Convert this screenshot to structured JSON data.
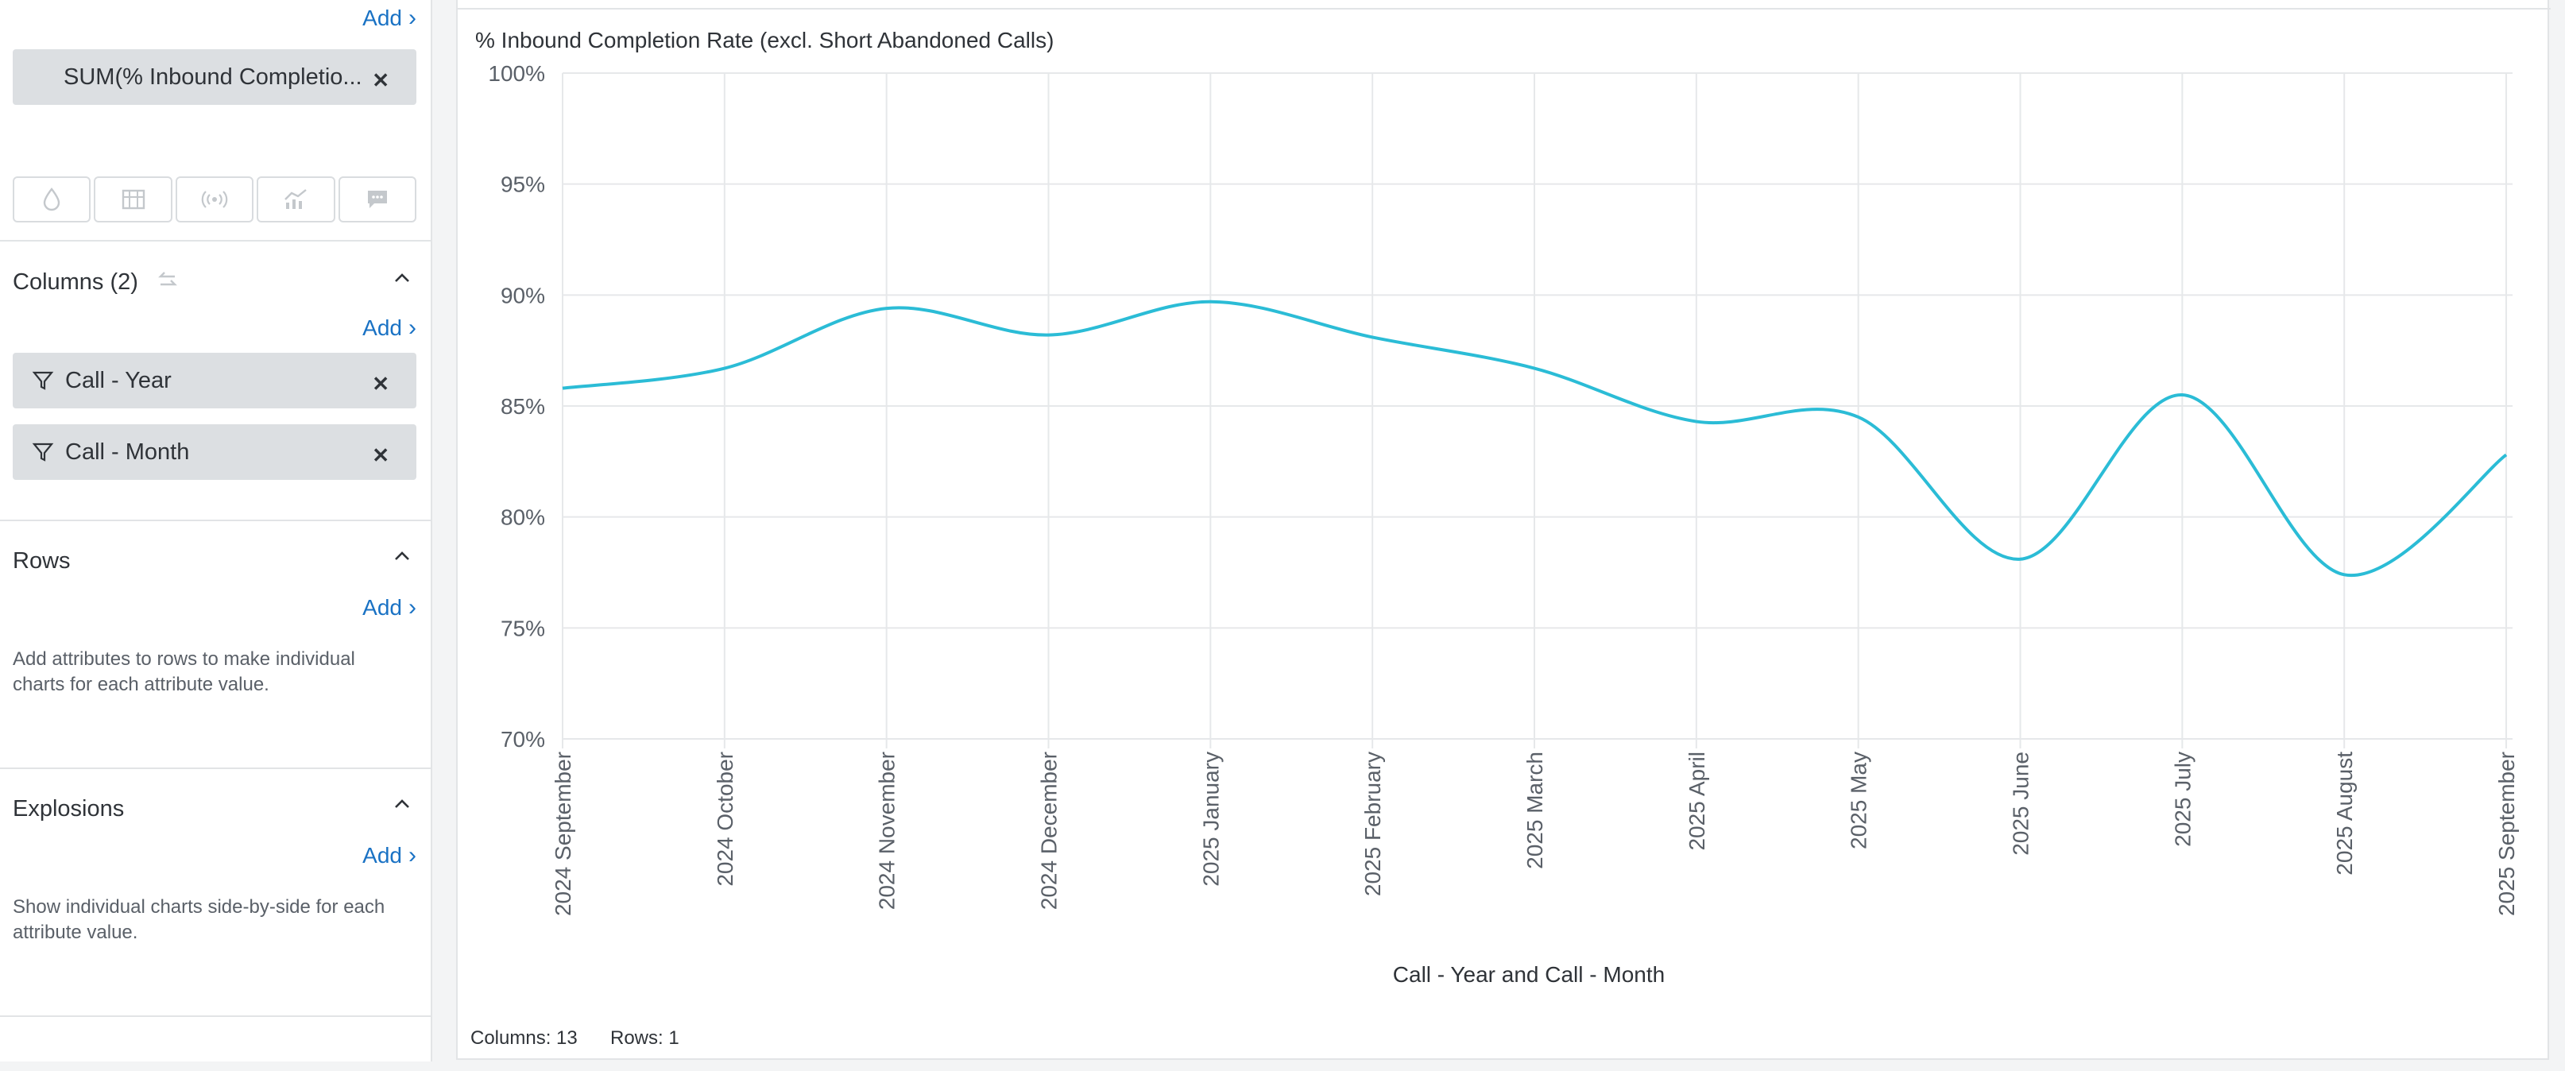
{
  "sidebar": {
    "measures": {
      "add_label": "Add",
      "pill_label": "SUM(% Inbound Completio..."
    },
    "encoding_icons": [
      "color-drop-icon",
      "size-table-icon",
      "signal-icon",
      "trend-chart-icon",
      "tooltip-comment-icon"
    ],
    "columns": {
      "title": "Columns (2)",
      "add_label": "Add",
      "items": [
        {
          "label": "Call - Year"
        },
        {
          "label": "Call - Month"
        }
      ]
    },
    "rows": {
      "title": "Rows",
      "add_label": "Add",
      "help": "Add attributes to rows to make individual charts for each attribute value."
    },
    "explosions": {
      "title": "Explosions",
      "add_label": "Add",
      "help": "Show individual charts side-by-side for each attribute value."
    }
  },
  "chart": {
    "footer": {
      "columns": "Columns: 13",
      "rows": "Rows: 1"
    }
  },
  "colors": {
    "line": "#2bbcd6",
    "link": "#1a72c4",
    "grid": "#e6e8ea"
  },
  "chart_data": {
    "type": "line",
    "title": "% Inbound Completion Rate (excl. Short Abandoned Calls)",
    "xlabel": "Call - Year and Call - Month",
    "ylabel": "",
    "ylim": [
      70,
      100
    ],
    "yticks": [
      70,
      75,
      80,
      85,
      90,
      95,
      100
    ],
    "ytick_labels": [
      "70%",
      "75%",
      "80%",
      "85%",
      "90%",
      "95%",
      "100%"
    ],
    "categories": [
      "2024 September",
      "2024 October",
      "2024 November",
      "2024 December",
      "2025 January",
      "2025 February",
      "2025 March",
      "2025 April",
      "2025 May",
      "2025 June",
      "2025 July",
      "2025 August",
      "2025 September"
    ],
    "series": [
      {
        "name": "SUM(% Inbound Completion Rate (excl. Short Abandoned Calls))",
        "values": [
          85.8,
          86.7,
          89.4,
          88.2,
          89.7,
          88.1,
          86.7,
          84.3,
          84.5,
          78.1,
          85.5,
          77.4,
          82.8
        ]
      }
    ],
    "grid": true
  }
}
